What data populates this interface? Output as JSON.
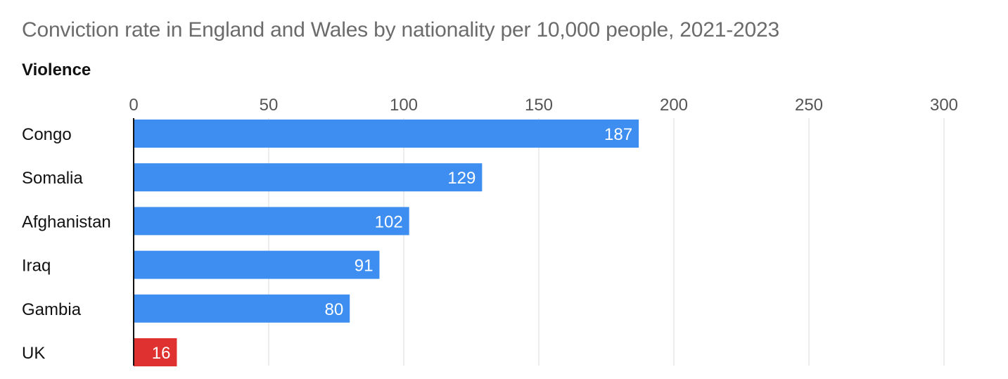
{
  "title": "Conviction rate in England and Wales by nationality per 10,000 people, 2021-2023",
  "subtitle": "Violence",
  "colors": {
    "default_bar": "#3d8ef0",
    "highlight_bar": "#e03131",
    "gridline": "#e6e6e6",
    "axis": "#111111"
  },
  "chart_data": {
    "type": "bar",
    "orientation": "horizontal",
    "title": "Conviction rate in England and Wales by nationality per 10,000 people, 2021-2023",
    "subtitle": "Violence",
    "categories": [
      "Congo",
      "Somalia",
      "Afghanistan",
      "Iraq",
      "Gambia",
      "UK"
    ],
    "values": [
      187,
      129,
      102,
      91,
      80,
      16
    ],
    "highlight": [
      "UK"
    ],
    "xlim": [
      0,
      300
    ],
    "xticks": [
      0,
      50,
      100,
      150,
      200,
      250,
      300
    ],
    "xtick_labels": [
      "0",
      "50",
      "100",
      "150",
      "200",
      "250",
      "300"
    ],
    "xaxis_position": "top",
    "grid": true,
    "data_labels": true
  }
}
